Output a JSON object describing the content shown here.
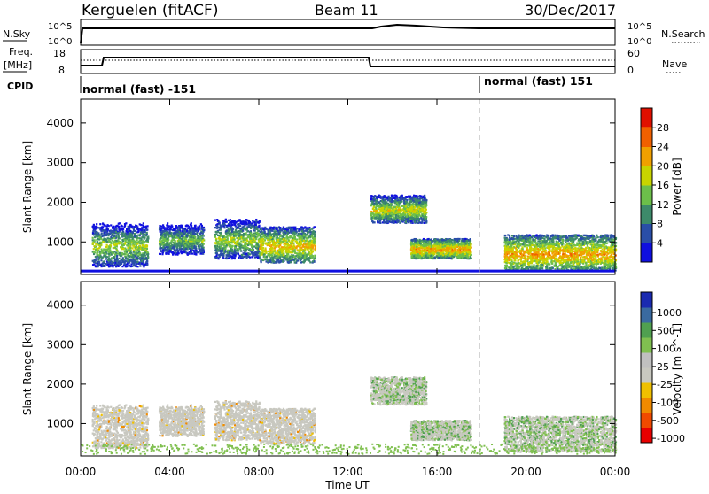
{
  "header": {
    "station": "Kerguelen (fitACF)",
    "beam": "Beam 11",
    "date": "30/Dec/2017"
  },
  "strip": {
    "nsky_label": "N.Sky",
    "nsky_ticks": [
      "10^5",
      "10^0"
    ],
    "nsearch_label": "N.Search",
    "nsearch_ticks": [
      "10^5",
      "10^0"
    ],
    "freq_label": "Freq.",
    "freq_unit": "[MHz]",
    "freq_ticks": [
      "18",
      "8"
    ],
    "nave_label": "Nave",
    "nave_ticks": [
      "60",
      "0"
    ],
    "cpid_label": "CPID",
    "cpid_1": "normal (fast) -151",
    "cpid_2": "normal (fast) 151"
  },
  "colors": {
    "power_scale": [
      "#1010e0",
      "#2a4ea8",
      "#3d8a6a",
      "#6cbf4a",
      "#c8d400",
      "#f0a000",
      "#f06000",
      "#e01000"
    ],
    "velocity_scale": [
      "#e80000",
      "#f04a00",
      "#f08a00",
      "#f0c000",
      "#c8c8c0",
      "#c0c0c0",
      "#80c050",
      "#50a050",
      "#3a6aa0",
      "#1a2ab0"
    ]
  },
  "chart_data": [
    {
      "type": "heatmap",
      "title": "",
      "xlabel": "Time UT",
      "ylabel": "Slant Range [km]",
      "xlim": [
        "00:00",
        "00:00"
      ],
      "ylim": [
        180,
        4600
      ],
      "x_ticks": [
        "00:00",
        "04:00",
        "08:00",
        "12:00",
        "16:00",
        "20:00",
        "00:00"
      ],
      "y_ticks": [
        "1000",
        "2000",
        "3000",
        "4000"
      ],
      "colorbar": {
        "label": "Power [dB]",
        "ticks": [
          "4",
          "8",
          "12",
          "16",
          "20",
          "24",
          "28"
        ]
      },
      "scatter_regions": [
        {
          "t_start": 0.5,
          "t_end": 3.0,
          "range_low": 400,
          "range_high": 1500,
          "peak": 22
        },
        {
          "t_start": 3.5,
          "t_end": 5.5,
          "range_low": 700,
          "range_high": 1500,
          "peak": 20
        },
        {
          "t_start": 6.0,
          "t_end": 8.0,
          "range_low": 600,
          "range_high": 1600,
          "peak": 22
        },
        {
          "t_start": 8.0,
          "t_end": 10.5,
          "range_low": 500,
          "range_high": 1400,
          "peak": 26
        },
        {
          "t_start": 13.0,
          "t_end": 15.5,
          "range_low": 1500,
          "range_high": 2200,
          "peak": 24
        },
        {
          "t_start": 14.8,
          "t_end": 17.5,
          "range_low": 600,
          "range_high": 1100,
          "peak": 28
        },
        {
          "t_start": 19.0,
          "t_end": 24.0,
          "range_low": 300,
          "range_high": 1200,
          "peak": 28
        }
      ]
    },
    {
      "type": "heatmap",
      "title": "",
      "xlabel": "Time UT",
      "ylabel": "Slant Range [km]",
      "xlim": [
        "00:00",
        "00:00"
      ],
      "ylim": [
        180,
        4600
      ],
      "x_ticks": [
        "00:00",
        "04:00",
        "08:00",
        "12:00",
        "16:00",
        "20:00",
        "00:00"
      ],
      "y_ticks": [
        "1000",
        "2000",
        "3000",
        "4000"
      ],
      "colorbar": {
        "label": "Velocity [m s^-1]",
        "ticks": [
          "1000",
          "500",
          "100",
          "25",
          "-25",
          "-100",
          "-500",
          "-1000"
        ]
      }
    }
  ]
}
